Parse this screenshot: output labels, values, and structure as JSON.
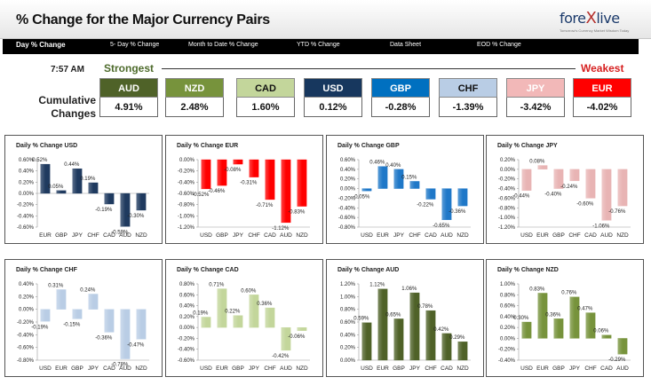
{
  "header": {
    "title": "% Change for the Major Currency Pairs",
    "logo_text_a": "fore",
    "logo_text_x": "X",
    "logo_text_b": "live",
    "logo_tagline": "Tomorrow's Currency Market Wisdom Today"
  },
  "nav": {
    "items": [
      "Day % Change",
      "5- Day % Change",
      "Month to Date % Change",
      "YTD % Change",
      "Data Sheet",
      "EOD % Change"
    ]
  },
  "timestamp": "7:57 AM",
  "strength": {
    "strongest_label": "Strongest",
    "weakest_label": "Weakest",
    "cumulative_label": "Cumulative Changes",
    "currencies": [
      {
        "code": "AUD",
        "value": "4.91%",
        "bg": "#4f6228",
        "fg": "#ffffff"
      },
      {
        "code": "NZD",
        "value": "2.48%",
        "bg": "#77933c",
        "fg": "#ffffff"
      },
      {
        "code": "CAD",
        "value": "1.60%",
        "bg": "#c3d69b",
        "fg": "#111111"
      },
      {
        "code": "USD",
        "value": "0.12%",
        "bg": "#17375e",
        "fg": "#ffffff"
      },
      {
        "code": "GBP",
        "value": "-0.28%",
        "bg": "#0070c0",
        "fg": "#ffffff"
      },
      {
        "code": "CHF",
        "value": "-1.39%",
        "bg": "#b9cde5",
        "fg": "#111111"
      },
      {
        "code": "JPY",
        "value": "-3.42%",
        "bg": "#f2b8b8",
        "fg": "#ffffff"
      },
      {
        "code": "EUR",
        "value": "-4.02%",
        "bg": "#ff0000",
        "fg": "#ffffff"
      }
    ]
  },
  "chart_data": [
    {
      "type": "bar",
      "title": "Daily % Change USD",
      "categories": [
        "EUR",
        "GBP",
        "JPY",
        "CHF",
        "CAD",
        "AUD",
        "NZD"
      ],
      "values": [
        0.52,
        0.05,
        0.44,
        0.19,
        -0.19,
        -0.59,
        -0.3
      ],
      "labels": [
        "0.52%",
        "0.05%",
        "0.44%",
        "0.19%",
        "-0.19%",
        "-0.59%",
        "-0.30%"
      ],
      "ylim": [
        -0.6,
        0.6
      ],
      "ticks": [
        0.6,
        0.4,
        0.2,
        0,
        -0.2,
        -0.4,
        -0.6
      ],
      "tick_labels": [
        "0.60%",
        "0.40%",
        "0.20%",
        "0.00%",
        "-0.20%",
        "-0.40%",
        "-0.60%"
      ],
      "axis_pos": "zero",
      "color": "#1f3a5f"
    },
    {
      "type": "bar",
      "title": "Daily % Change EUR",
      "categories": [
        "USD",
        "GBP",
        "JPY",
        "CHF",
        "CAD",
        "AUD",
        "NZD"
      ],
      "values": [
        -0.52,
        -0.46,
        -0.08,
        -0.31,
        -0.71,
        -1.12,
        -0.83
      ],
      "labels": [
        "-0.52%",
        "-0.46%",
        "-0.08%",
        "-0.31%",
        "-0.71%",
        "-1.12%",
        "-0.83%"
      ],
      "ylim": [
        -1.2,
        0
      ],
      "ticks": [
        0,
        -0.2,
        -0.4,
        -0.6,
        -0.8,
        -1.0,
        -1.2
      ],
      "tick_labels": [
        "0.00%",
        "-0.20%",
        "-0.40%",
        "-0.60%",
        "-0.80%",
        "-1.00%",
        "-1.20%"
      ],
      "axis_pos": "bottom",
      "color": "#ff0000"
    },
    {
      "type": "bar",
      "title": "Daily % Change GBP",
      "categories": [
        "USD",
        "EUR",
        "JPY",
        "CHF",
        "CAD",
        "AUD",
        "NZD"
      ],
      "values": [
        -0.05,
        0.46,
        0.4,
        0.15,
        -0.22,
        -0.65,
        -0.36
      ],
      "labels": [
        "-0.05%",
        "0.46%",
        "0.40%",
        "0.15%",
        "-0.22%",
        "-0.65%",
        "-0.36%"
      ],
      "ylim": [
        -0.8,
        0.6
      ],
      "ticks": [
        0.6,
        0.4,
        0.2,
        0,
        -0.2,
        -0.4,
        -0.6,
        -0.8
      ],
      "tick_labels": [
        "0.60%",
        "0.40%",
        "0.20%",
        "0.00%",
        "-0.20%",
        "-0.40%",
        "-0.60%",
        "-0.80%"
      ],
      "axis_pos": "bottom",
      "color": "#1f78c8"
    },
    {
      "type": "bar",
      "title": "Daily % Change JPY",
      "categories": [
        "USD",
        "EUR",
        "GBP",
        "CHF",
        "CAD",
        "AUD",
        "NZD"
      ],
      "values": [
        -0.44,
        0.08,
        -0.4,
        -0.24,
        -0.6,
        -1.06,
        -0.76
      ],
      "labels": [
        "-0.44%",
        "0.08%",
        "-0.40%",
        "-0.24%",
        "-0.60%",
        "-1.06%",
        "-0.76%"
      ],
      "ylim": [
        -1.2,
        0.2
      ],
      "ticks": [
        0.2,
        0,
        -0.2,
        -0.4,
        -0.6,
        -0.8,
        -1.0,
        -1.2
      ],
      "tick_labels": [
        "0.20%",
        "0.00%",
        "-0.20%",
        "-0.40%",
        "-0.60%",
        "-0.80%",
        "-1.00%",
        "-1.20%"
      ],
      "axis_pos": "bottom",
      "color": "#e8b4b4"
    },
    {
      "type": "bar",
      "title": "Daily % Change CHF",
      "categories": [
        "USD",
        "EUR",
        "GBP",
        "JPY",
        "CAD",
        "AUD",
        "NZD"
      ],
      "values": [
        -0.19,
        0.31,
        -0.15,
        0.24,
        -0.36,
        -0.78,
        -0.47
      ],
      "labels": [
        "-0.19%",
        "0.31%",
        "-0.15%",
        "0.24%",
        "-0.36%",
        "-0.78%",
        "-0.47%"
      ],
      "ylim": [
        -0.8,
        0.4
      ],
      "ticks": [
        0.4,
        0.2,
        0,
        -0.2,
        -0.4,
        -0.6,
        -0.8
      ],
      "tick_labels": [
        "0.40%",
        "0.20%",
        "0.00%",
        "-0.20%",
        "-0.40%",
        "-0.60%",
        "-0.80%"
      ],
      "axis_pos": "bottom",
      "color": "#b9cde5"
    },
    {
      "type": "bar",
      "title": "Daily % Change CAD",
      "categories": [
        "USD",
        "EUR",
        "GBP",
        "JPY",
        "CHF",
        "AUD",
        "NZD"
      ],
      "values": [
        0.19,
        0.71,
        0.22,
        0.6,
        0.36,
        -0.42,
        -0.06
      ],
      "labels": [
        "0.19%",
        "0.71%",
        "0.22%",
        "0.60%",
        "0.36%",
        "-0.42%",
        "-0.06%"
      ],
      "ylim": [
        -0.6,
        0.8
      ],
      "ticks": [
        0.8,
        0.6,
        0.4,
        0.2,
        0,
        -0.2,
        -0.4,
        -0.6
      ],
      "tick_labels": [
        "0.80%",
        "0.60%",
        "0.40%",
        "0.20%",
        "0.00%",
        "-0.20%",
        "-0.40%",
        "-0.60%"
      ],
      "axis_pos": "bottom",
      "color": "#c3d69b"
    },
    {
      "type": "bar",
      "title": "Daily % Change AUD",
      "categories": [
        "USD",
        "EUR",
        "GBP",
        "JPY",
        "CHF",
        "CAD",
        "NZD"
      ],
      "values": [
        0.59,
        1.12,
        0.65,
        1.06,
        0.78,
        0.42,
        0.29
      ],
      "labels": [
        "0.59%",
        "1.12%",
        "0.65%",
        "1.06%",
        "0.78%",
        "0.42%",
        "0.29%"
      ],
      "ylim": [
        0,
        1.2
      ],
      "ticks": [
        1.2,
        1.0,
        0.8,
        0.6,
        0.4,
        0.2,
        0
      ],
      "tick_labels": [
        "1.20%",
        "1.00%",
        "0.80%",
        "0.60%",
        "0.40%",
        "0.20%",
        "0.00%"
      ],
      "axis_pos": "bottom",
      "color": "#4f6228"
    },
    {
      "type": "bar",
      "title": "Daily % Change NZD",
      "categories": [
        "USD",
        "EUR",
        "GBP",
        "JPY",
        "CHF",
        "CAD",
        "AUD"
      ],
      "values": [
        0.3,
        0.83,
        0.36,
        0.76,
        0.47,
        0.06,
        -0.29
      ],
      "labels": [
        "0.30%",
        "0.83%",
        "0.36%",
        "0.76%",
        "0.47%",
        "0.06%",
        "-0.29%"
      ],
      "ylim": [
        -0.4,
        1.0
      ],
      "ticks": [
        1.0,
        0.8,
        0.6,
        0.4,
        0.2,
        0,
        -0.2,
        -0.4
      ],
      "tick_labels": [
        "1.00%",
        "0.80%",
        "0.60%",
        "0.40%",
        "0.20%",
        "0.00%",
        "-0.20%",
        "-0.40%"
      ],
      "axis_pos": "bottom",
      "color": "#77933c"
    }
  ]
}
